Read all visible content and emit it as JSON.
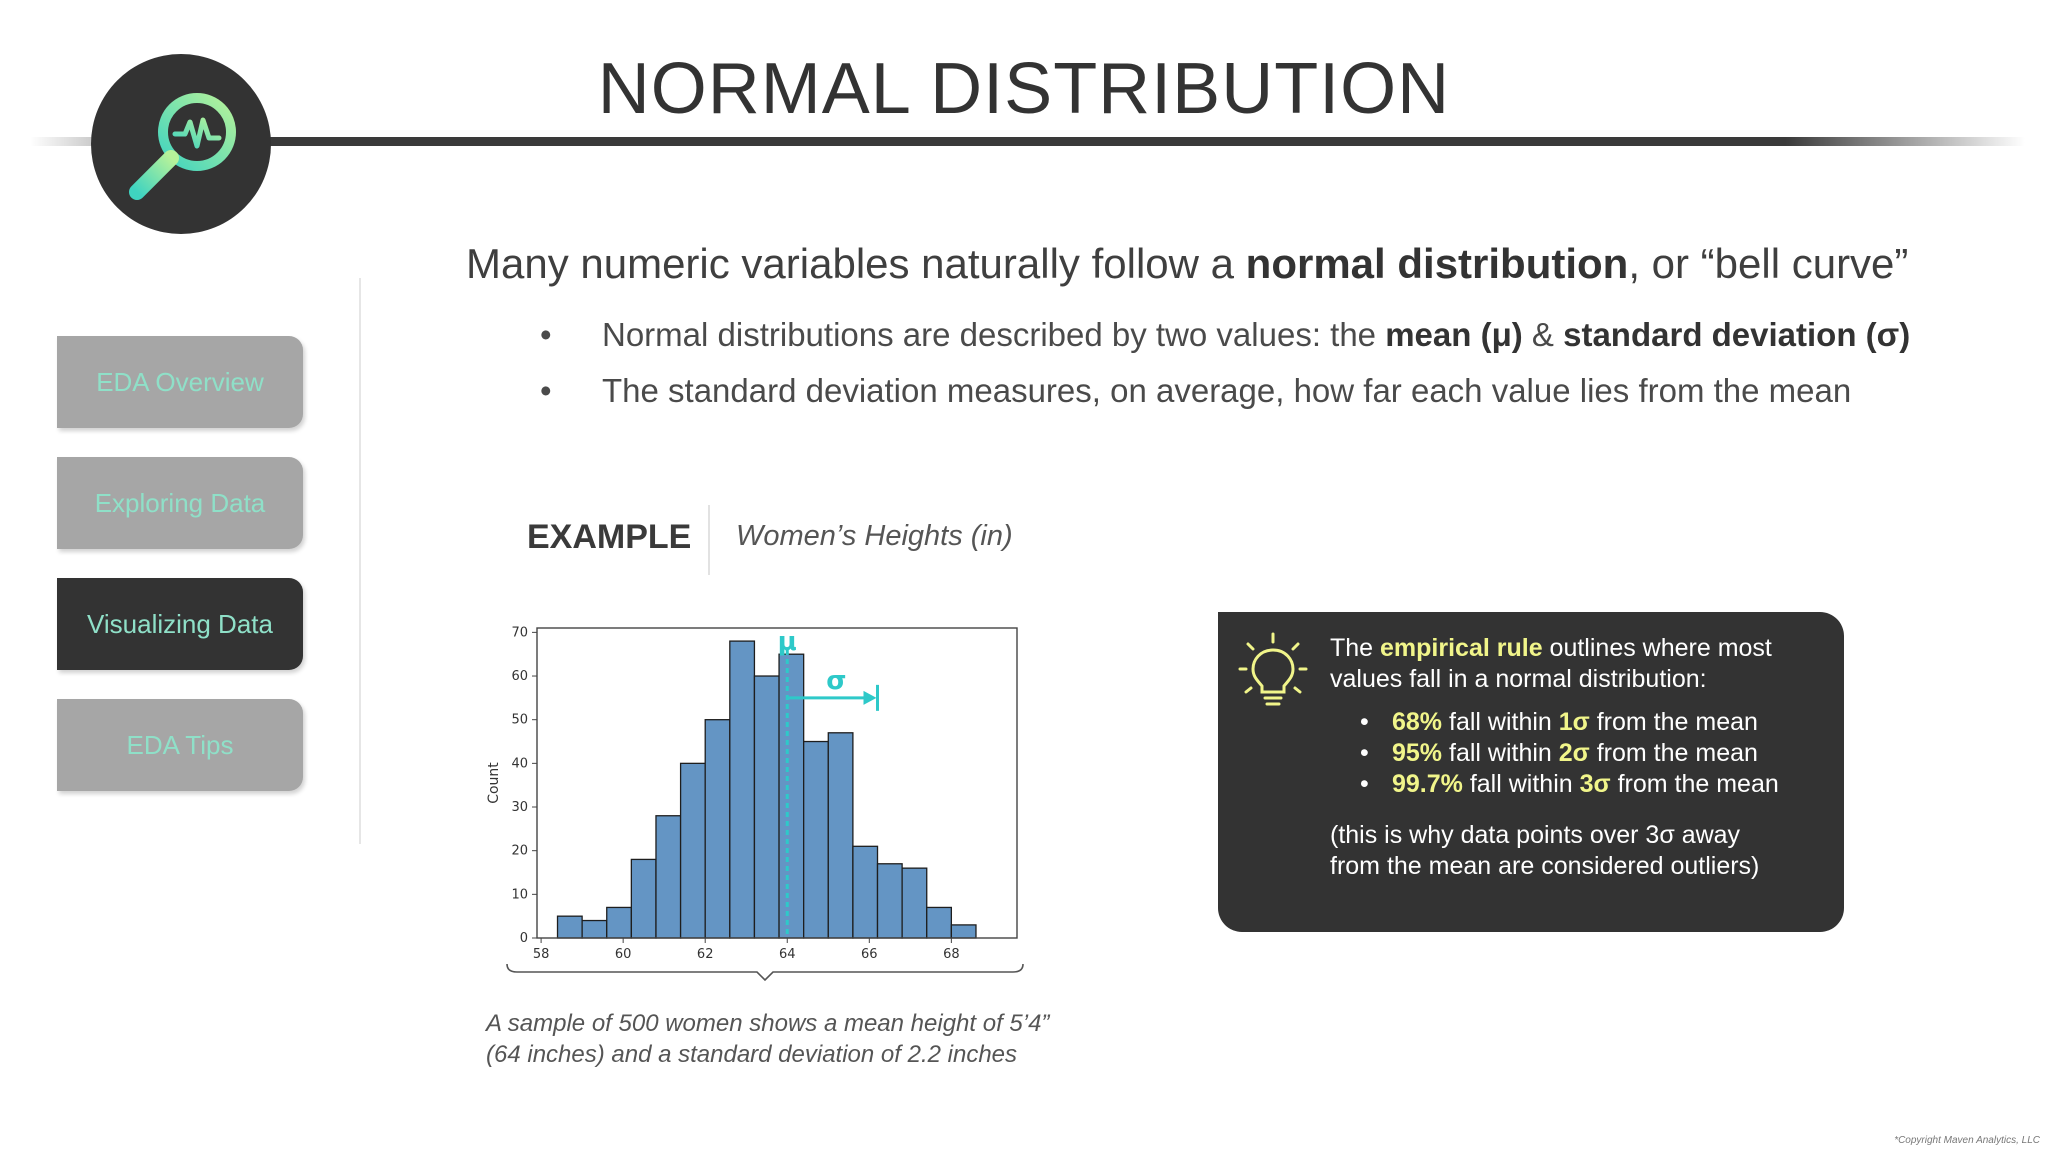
{
  "header": {
    "title": "NORMAL DISTRIBUTION",
    "logo_icon": "magnifier-pulse-icon"
  },
  "sidebar": {
    "items": [
      {
        "label": "EDA Overview",
        "active": false
      },
      {
        "label": "Exploring Data",
        "active": false
      },
      {
        "label": "Visualizing Data",
        "active": true
      },
      {
        "label": "EDA Tips",
        "active": false
      }
    ],
    "active_bg": "#333333",
    "inactive_bg": "#a6a6a6",
    "label_color": "#8fe0c8"
  },
  "main": {
    "lead_pre": "Many numeric variables naturally follow a ",
    "lead_bold": "normal distribution",
    "lead_post": ", or “bell curve”",
    "bullets": [
      {
        "dot": "•",
        "pre": "Normal distributions are described by two values: the ",
        "bold1": "mean (μ)",
        "mid": " & ",
        "bold2": "standard deviation (σ)"
      },
      {
        "dot": "•",
        "text": "The standard deviation measures, on average, how far each value lies from the mean"
      }
    ]
  },
  "example": {
    "label": "EXAMPLE",
    "subject": "Women’s Heights (in)",
    "caption_line1": "A sample of 500 women shows a mean height of 5’4”",
    "caption_line2": "(64 inches) and a standard deviation of 2.2 inches"
  },
  "chart_data": {
    "type": "bar",
    "title": "",
    "xlabel": "",
    "ylabel": "Count",
    "bin_width": 0.6,
    "bin_edges_start": 58.4,
    "values": [
      5,
      4,
      7,
      18,
      28,
      40,
      50,
      68,
      60,
      65,
      45,
      47,
      21,
      17,
      16,
      7,
      3
    ],
    "xlim": [
      57.9,
      69.6
    ],
    "ylim": [
      0,
      71
    ],
    "xticks": [
      58,
      60,
      62,
      64,
      66,
      68
    ],
    "yticks": [
      0,
      10,
      20,
      30,
      40,
      50,
      60,
      70
    ],
    "bar_color": "#6495c4",
    "annotations": {
      "mean_value": 64,
      "mean_label": "μ",
      "sigma_end": 66.2,
      "sigma_label": "σ",
      "arrow_y": 55,
      "color": "#2ec9c9"
    }
  },
  "rule_box": {
    "icon": "lightbulb-icon",
    "intro_pre": "The ",
    "intro_hl": "empirical rule",
    "intro_post": " outlines where most values fall in a normal distribution:",
    "items": [
      {
        "dot": "•",
        "pct": "68%",
        "mid": " fall within ",
        "sig": "1σ",
        "post": " from the mean"
      },
      {
        "dot": "•",
        "pct": "95%",
        "mid": " fall within ",
        "sig": "2σ",
        "post": " from the mean"
      },
      {
        "dot": "•",
        "pct": "99.7%",
        "mid": " fall within ",
        "sig": "3σ",
        "post": " from the mean"
      }
    ],
    "note_line1": "(this is why data points over 3σ away",
    "note_line2": "from the mean are considered outliers)",
    "highlight_color": "#f1f58a"
  },
  "footer": {
    "copyright": "*Copyright Maven Analytics, LLC"
  }
}
